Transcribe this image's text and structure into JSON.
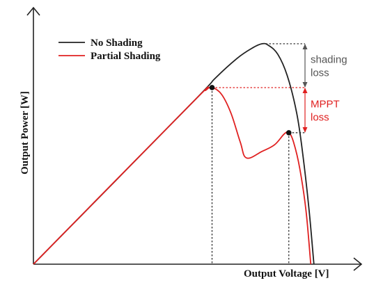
{
  "chart_data": {
    "type": "line",
    "title": "",
    "xlabel": "Output Voltage [V]",
    "ylabel": "Output Power [W]",
    "xlim": [
      0,
      1
    ],
    "ylim": [
      0,
      1
    ],
    "grid": false,
    "legend_position": "top-left",
    "series": [
      {
        "name": "No Shading",
        "color": "#222222",
        "points": [
          [
            0,
            0
          ],
          [
            0.5,
            0.6
          ],
          [
            0.58,
            0.7
          ],
          [
            0.65,
            0.775
          ],
          [
            0.7,
            0.815
          ],
          [
            0.73,
            0.83
          ],
          [
            0.75,
            0.824
          ],
          [
            0.78,
            0.79
          ],
          [
            0.81,
            0.71
          ],
          [
            0.84,
            0.57
          ],
          [
            0.86,
            0.41
          ],
          [
            0.88,
            0.2
          ],
          [
            0.895,
            0
          ]
        ]
      },
      {
        "name": "Partial Shading",
        "color": "#e02020",
        "points": [
          [
            0,
            0
          ],
          [
            0.5,
            0.6
          ],
          [
            0.55,
            0.655
          ],
          [
            0.57,
            0.665
          ],
          [
            0.6,
            0.64
          ],
          [
            0.63,
            0.57
          ],
          [
            0.66,
            0.46
          ],
          [
            0.68,
            0.4
          ],
          [
            0.73,
            0.425
          ],
          [
            0.77,
            0.45
          ],
          [
            0.8,
            0.49
          ],
          [
            0.815,
            0.495
          ],
          [
            0.83,
            0.46
          ],
          [
            0.85,
            0.36
          ],
          [
            0.87,
            0.2
          ],
          [
            0.885,
            0
          ]
        ]
      }
    ],
    "markers": [
      {
        "name": "global-mpp",
        "x": 0.57,
        "y": 0.665
      },
      {
        "name": "local-mpp",
        "x": 0.815,
        "y": 0.495
      }
    ],
    "annotations": [
      {
        "text": [
          "shading",
          "loss"
        ],
        "color": "#555555"
      },
      {
        "text": [
          "MPPT",
          "loss"
        ],
        "color": "#e02020"
      }
    ]
  }
}
